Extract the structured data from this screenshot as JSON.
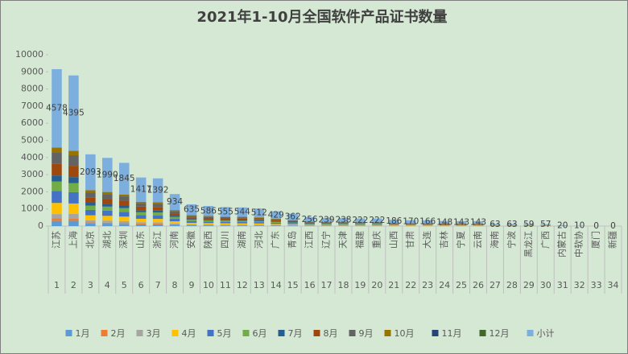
{
  "chart_data": {
    "type": "stacked-bar",
    "title": "2021年1-10月全国软件产品证书数量",
    "categories": [
      "江苏",
      "上海",
      "北京",
      "湖北",
      "深圳",
      "山东",
      "浙江",
      "河南",
      "安徽",
      "陕西",
      "四川",
      "湖南",
      "河北",
      "广东",
      "青岛",
      "江西",
      "辽宁",
      "天津",
      "福建",
      "重庆",
      "山西",
      "甘肃",
      "大连",
      "吉林",
      "宁夏",
      "云南",
      "海南",
      "宁波",
      "黑龙江",
      "广西",
      "内蒙古",
      "中软协",
      "厦门",
      "新疆"
    ],
    "category_numbers": [
      1,
      2,
      3,
      4,
      5,
      6,
      7,
      8,
      9,
      10,
      11,
      12,
      13,
      14,
      15,
      16,
      17,
      18,
      19,
      20,
      21,
      22,
      23,
      24,
      25,
      26,
      27,
      28,
      29,
      30,
      31,
      32,
      33,
      34
    ],
    "series": [
      {
        "name": "1月",
        "color": "#5b9bd5",
        "values": [
          300,
          308,
          147,
          139,
          129,
          99,
          97,
          65,
          44,
          41,
          39,
          38,
          36,
          30,
          25,
          18,
          17,
          17,
          16,
          16,
          13,
          12,
          12,
          10,
          10,
          10,
          4,
          4,
          4,
          4,
          1,
          1,
          0,
          0
        ]
      },
      {
        "name": "2月",
        "color": "#ed7d31",
        "values": [
          150,
          132,
          63,
          60,
          55,
          43,
          42,
          28,
          19,
          18,
          17,
          16,
          15,
          13,
          11,
          8,
          7,
          7,
          7,
          7,
          6,
          5,
          5,
          4,
          4,
          4,
          2,
          2,
          2,
          2,
          1,
          0,
          0,
          0
        ]
      },
      {
        "name": "3月",
        "color": "#a5a5a5",
        "values": [
          250,
          264,
          126,
          119,
          111,
          85,
          84,
          56,
          38,
          35,
          33,
          33,
          31,
          26,
          22,
          15,
          14,
          14,
          13,
          13,
          11,
          10,
          10,
          9,
          9,
          9,
          4,
          4,
          4,
          3,
          1,
          1,
          0,
          0
        ]
      },
      {
        "name": "4月",
        "color": "#ffc000",
        "values": [
          650,
          615,
          293,
          279,
          258,
          198,
          195,
          131,
          89,
          82,
          78,
          76,
          72,
          60,
          51,
          36,
          33,
          33,
          31,
          31,
          26,
          24,
          23,
          21,
          20,
          20,
          9,
          9,
          8,
          8,
          3,
          1,
          0,
          0
        ]
      },
      {
        "name": "5月",
        "color": "#4472c4",
        "values": [
          700,
          659,
          314,
          299,
          277,
          213,
          209,
          140,
          95,
          88,
          83,
          82,
          77,
          64,
          54,
          38,
          36,
          36,
          33,
          33,
          28,
          26,
          25,
          22,
          21,
          21,
          9,
          9,
          9,
          9,
          3,
          2,
          0,
          0
        ]
      },
      {
        "name": "6月",
        "color": "#70ad47",
        "values": [
          550,
          527,
          251,
          239,
          221,
          170,
          167,
          112,
          76,
          70,
          67,
          65,
          61,
          51,
          43,
          31,
          29,
          29,
          27,
          27,
          22,
          20,
          20,
          18,
          17,
          17,
          8,
          8,
          7,
          7,
          2,
          1,
          0,
          0
        ]
      },
      {
        "name": "7月",
        "color": "#255e91",
        "values": [
          350,
          352,
          167,
          159,
          148,
          113,
          111,
          75,
          51,
          47,
          44,
          44,
          41,
          34,
          29,
          20,
          19,
          19,
          18,
          18,
          15,
          14,
          13,
          12,
          11,
          11,
          5,
          5,
          5,
          5,
          2,
          1,
          0,
          0
        ]
      },
      {
        "name": "8月",
        "color": "#9e480e",
        "values": [
          700,
          659,
          314,
          299,
          277,
          213,
          209,
          140,
          95,
          88,
          83,
          82,
          77,
          64,
          54,
          38,
          36,
          36,
          33,
          33,
          28,
          26,
          25,
          22,
          21,
          21,
          9,
          9,
          9,
          9,
          3,
          1,
          0,
          0
        ]
      },
      {
        "name": "9月",
        "color": "#636363",
        "values": [
          650,
          615,
          293,
          279,
          258,
          198,
          195,
          131,
          89,
          82,
          78,
          76,
          72,
          60,
          51,
          36,
          33,
          33,
          31,
          31,
          26,
          24,
          23,
          21,
          20,
          20,
          9,
          9,
          8,
          8,
          3,
          1,
          0,
          0
        ]
      },
      {
        "name": "10月",
        "color": "#997300",
        "values": [
          278,
          264,
          125,
          118,
          111,
          85,
          83,
          56,
          39,
          35,
          33,
          32,
          30,
          27,
          22,
          16,
          15,
          14,
          13,
          13,
          11,
          9,
          10,
          9,
          10,
          10,
          4,
          4,
          3,
          2,
          1,
          1,
          0,
          0
        ]
      },
      {
        "name": "11月",
        "color": "#264478",
        "values": [
          0,
          0,
          0,
          0,
          0,
          0,
          0,
          0,
          0,
          0,
          0,
          0,
          0,
          0,
          0,
          0,
          0,
          0,
          0,
          0,
          0,
          0,
          0,
          0,
          0,
          0,
          0,
          0,
          0,
          0,
          0,
          0,
          0,
          0
        ]
      },
      {
        "name": "12月",
        "color": "#43682b",
        "values": [
          0,
          0,
          0,
          0,
          0,
          0,
          0,
          0,
          0,
          0,
          0,
          0,
          0,
          0,
          0,
          0,
          0,
          0,
          0,
          0,
          0,
          0,
          0,
          0,
          0,
          0,
          0,
          0,
          0,
          0,
          0,
          0,
          0,
          0
        ]
      },
      {
        "name": "小计",
        "color": "#7cafdd",
        "data_labels": true,
        "values": [
          4578,
          4395,
          2093,
          1990,
          1845,
          1417,
          1392,
          934,
          635,
          586,
          555,
          544,
          512,
          429,
          362,
          256,
          239,
          238,
          222,
          222,
          186,
          170,
          166,
          148,
          143,
          143,
          63,
          63,
          59,
          57,
          20,
          10,
          0,
          0
        ]
      }
    ],
    "ylim": [
      0,
      10000
    ],
    "yticks": [
      0,
      1000,
      2000,
      3000,
      4000,
      5000,
      6000,
      7000,
      8000,
      9000,
      10000
    ],
    "legend": "bottom"
  }
}
